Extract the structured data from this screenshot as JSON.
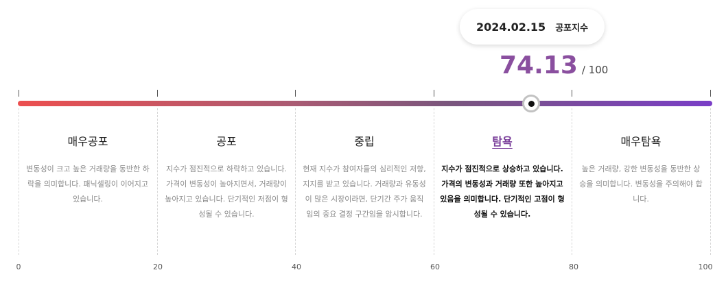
{
  "tooltip": {
    "date": "2024.02.15",
    "label": "공포지수"
  },
  "index": {
    "value": "74.13",
    "max_label": "/ 100",
    "value_numeric": 74.13,
    "max": 100
  },
  "colors": {
    "gradient_start": "#ec4f4f",
    "gradient_end": "#7a3ec7",
    "value": "#8a4f9f",
    "active_title": "#7a3e9a"
  },
  "zones": [
    {
      "title": "매우공포",
      "desc": "변동성이 크고 높은 거래량을 동반한 하락을 의미합니다. 패닉셀링이 이어지고 있습니다."
    },
    {
      "title": "공포",
      "desc": "지수가 점진적으로 하락하고 있습니다. 가격이 변동성이 높아지면서, 거래량이 높아지고 있습니다. 단기적인 저점이 형성될 수 있습니다."
    },
    {
      "title": "중립",
      "desc": "현재 지수가 참여자들의 심리적인 저항, 지지를 받고 있습니다. 거래량과 유동성이 많은 시장이라면, 단기간 주가 움직임의 중요 결정 구간임을 암시합니다."
    },
    {
      "title": "탐욕",
      "desc": "지수가 점진적으로 상승하고 있습니다. 가격의 변동성과 거래량 또한 높아지고 있음을 의미합니다. 단기적인 고점이 형성될 수 있습니다.",
      "active": true
    },
    {
      "title": "매우탐욕",
      "desc": "높은 거래량, 강한 변동성을 동반한 상승을 의미합니다. 변동성을 주의해야 합니다."
    }
  ],
  "axis_labels": [
    "0",
    "20",
    "40",
    "60",
    "80",
    "100"
  ]
}
